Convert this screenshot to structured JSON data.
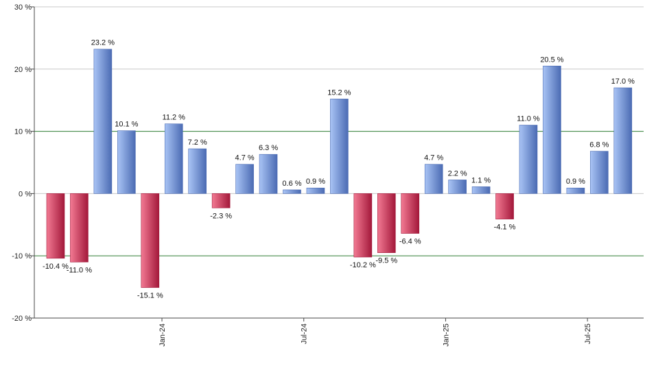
{
  "chart_data": {
    "type": "bar",
    "title": "",
    "xlabel": "",
    "ylabel": "",
    "ylim": [
      -20,
      30
    ],
    "y_ticks": [
      30,
      20,
      10,
      0,
      -10,
      -20
    ],
    "y_tick_suffix": " %",
    "value_suffix": " %",
    "x_tick_labels": [
      {
        "label": "Jan-24",
        "after_bar": 4
      },
      {
        "label": "Jul-24",
        "after_bar": 10
      },
      {
        "label": "Jan-25",
        "after_bar": 16
      },
      {
        "label": "Jul-25",
        "after_bar": 22
      }
    ],
    "grid": true,
    "highlight_gridlines": [
      10,
      -10
    ],
    "values": [
      -10.4,
      -11.0,
      23.2,
      10.1,
      -15.1,
      11.2,
      7.2,
      -2.3,
      4.7,
      6.3,
      0.6,
      0.9,
      15.2,
      -10.2,
      -9.5,
      -6.4,
      4.7,
      2.2,
      1.1,
      -4.1,
      11.0,
      20.5,
      0.9,
      6.8,
      17.0
    ],
    "value_labels": [
      "-10.4 %",
      "-11.0 %",
      "23.2 %",
      "10.1 %",
      "-15.1 %",
      "11.2 %",
      "7.2 %",
      "-2.3 %",
      "4.7 %",
      "6.3 %",
      "0.6 %",
      "0.9 %",
      "15.2 %",
      "-10.2 %",
      "-9.5 %",
      "-6.4 %",
      "4.7 %",
      "2.2 %",
      "1.1 %",
      "-4.1 %",
      "11.0 %",
      "20.5 %",
      "0.9 %",
      "6.8 %",
      "17.0 %"
    ],
    "colors": {
      "positive_light": "#a9c4f5",
      "positive_dark": "#4b6bb3",
      "negative_light": "#f27a93",
      "negative_dark": "#a3183a",
      "grid": "#c8c8c8",
      "highlight_grid": "#2e7d32",
      "axis": "#444444"
    }
  }
}
